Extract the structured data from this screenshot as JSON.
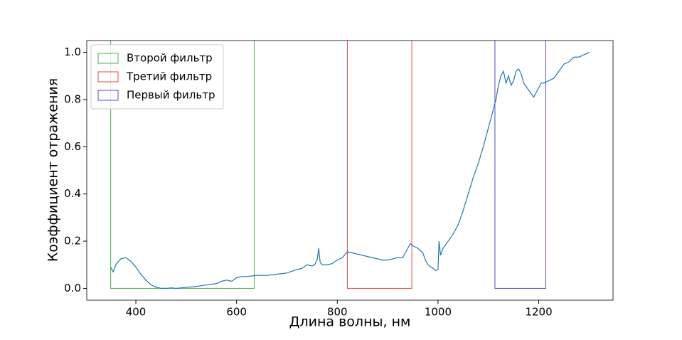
{
  "chart_data": {
    "type": "line",
    "x_label": "Длина волны, нм",
    "y_label": "Коэффициент отражения",
    "xlim": [
      302.5,
      1347.5
    ],
    "ylim": [
      -0.05,
      1.05
    ],
    "xticks": [
      400,
      600,
      800,
      1000,
      1200
    ],
    "yticks": [
      {
        "value": 0,
        "label": "0.0"
      },
      0.2,
      0.4,
      0.6,
      0.8,
      {
        "value": 1,
        "label": "1.0"
      }
    ],
    "legend": "upper left",
    "filters": [
      {
        "name": "Второй фильтр",
        "color": "#4caf50",
        "x_start": 350,
        "x_end": 635,
        "y_bottom": 0
      },
      {
        "name": "Третий фильтр",
        "color": "#e8474a",
        "x_start": 820,
        "x_end": 948,
        "y_bottom": 0
      },
      {
        "name": "Первый фильтр",
        "color": "#4b4bd9",
        "x_start": 1113,
        "x_end": 1214,
        "y_bottom": 0
      }
    ],
    "series": [
      {
        "color": "#1f77b4",
        "x": [
          350,
          355,
          360,
          370,
          380,
          390,
          400,
          410,
          420,
          430,
          440,
          450,
          460,
          470,
          480,
          490,
          500,
          520,
          540,
          560,
          570,
          580,
          590,
          600,
          610,
          620,
          640,
          660,
          680,
          700,
          720,
          730,
          740,
          750,
          755,
          760,
          763,
          766,
          770,
          780,
          790,
          800,
          810,
          820,
          830,
          840,
          850,
          860,
          870,
          880,
          890,
          900,
          910,
          920,
          930,
          940,
          945,
          950,
          960,
          970,
          975,
          980,
          990,
          995,
          1000,
          1002,
          1005,
          1010,
          1020,
          1030,
          1040,
          1050,
          1060,
          1070,
          1080,
          1090,
          1100,
          1110,
          1115,
          1120,
          1125,
          1130,
          1135,
          1140,
          1145,
          1150,
          1155,
          1160,
          1165,
          1170,
          1180,
          1190,
          1195,
          1200,
          1205,
          1210,
          1220,
          1230,
          1240,
          1250,
          1260,
          1270,
          1280,
          1290,
          1300
        ],
        "values": [
          0.09,
          0.07,
          0.1,
          0.125,
          0.13,
          0.115,
          0.09,
          0.06,
          0.035,
          0.015,
          0.005,
          0.0,
          0.0,
          0.002,
          0.0,
          0.002,
          0.004,
          0.008,
          0.015,
          0.02,
          0.03,
          0.035,
          0.03,
          0.045,
          0.05,
          0.05,
          0.055,
          0.055,
          0.06,
          0.065,
          0.08,
          0.085,
          0.1,
          0.095,
          0.1,
          0.12,
          0.17,
          0.11,
          0.1,
          0.1,
          0.105,
          0.12,
          0.13,
          0.155,
          0.15,
          0.145,
          0.14,
          0.135,
          0.13,
          0.125,
          0.12,
          0.12,
          0.125,
          0.13,
          0.13,
          0.17,
          0.19,
          0.18,
          0.17,
          0.15,
          0.12,
          0.1,
          0.085,
          0.075,
          0.08,
          0.2,
          0.14,
          0.17,
          0.2,
          0.23,
          0.27,
          0.33,
          0.4,
          0.47,
          0.53,
          0.6,
          0.68,
          0.76,
          0.8,
          0.86,
          0.9,
          0.92,
          0.87,
          0.9,
          0.86,
          0.88,
          0.92,
          0.93,
          0.91,
          0.87,
          0.84,
          0.81,
          0.83,
          0.85,
          0.87,
          0.87,
          0.88,
          0.89,
          0.92,
          0.95,
          0.96,
          0.98,
          0.98,
          0.99,
          1.0
        ]
      }
    ]
  }
}
